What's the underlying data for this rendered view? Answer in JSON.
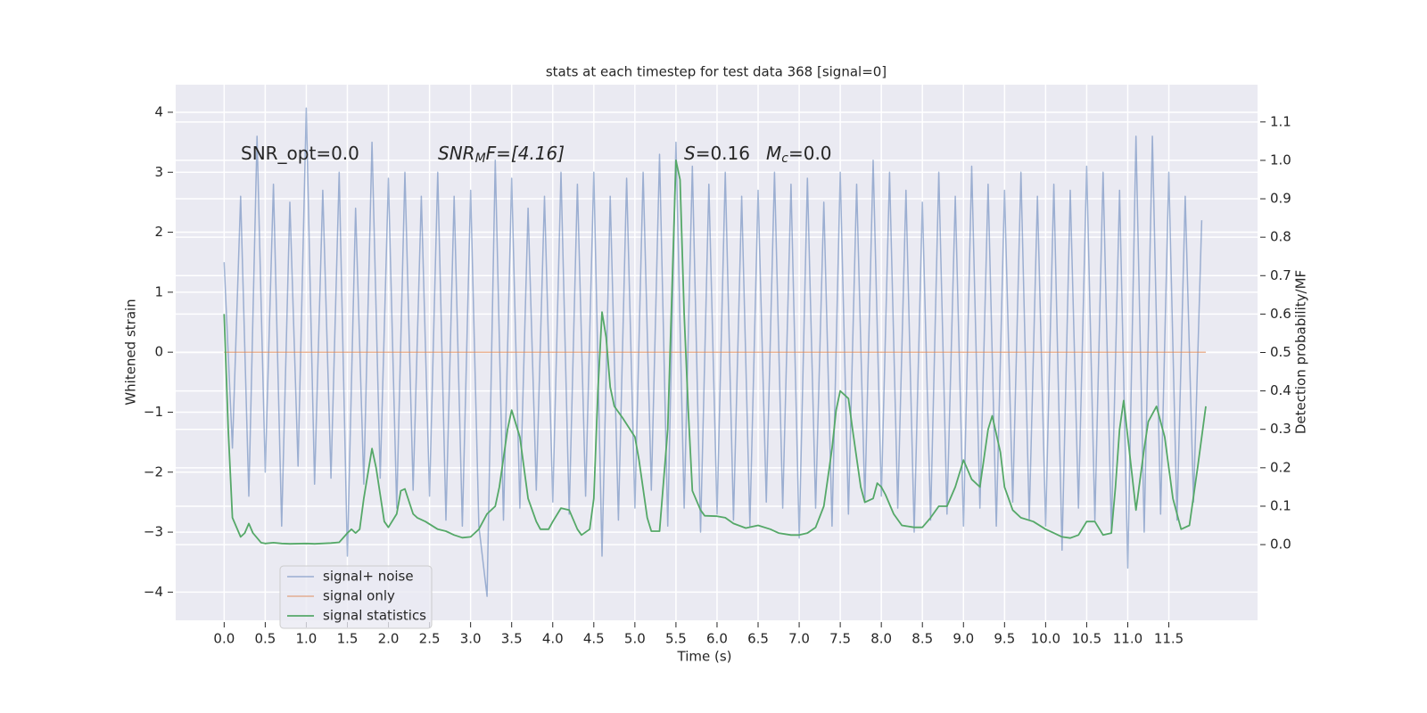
{
  "chart_data": {
    "type": "line",
    "title": "stats at each timestep for test data 368 [signal=0]",
    "xlabel": "Time (s)",
    "ylabel": "Whitened strain",
    "y2label": "Detection probability/MF",
    "xlim": [
      -0.59,
      12.58
    ],
    "ylim": [
      -4.47,
      4.46
    ],
    "y2lim": [
      -0.197,
      1.197
    ],
    "xticks": [
      {
        "value": 0,
        "label": "0.0"
      },
      0.5,
      {
        "value": 1,
        "label": "1.0"
      },
      1.5,
      {
        "value": 2,
        "label": "2.0"
      },
      2.5,
      {
        "value": 3,
        "label": "3.0"
      },
      3.5,
      {
        "value": 4,
        "label": "4.0"
      },
      4.5,
      {
        "value": 5,
        "label": "5.0"
      },
      5.5,
      {
        "value": 6,
        "label": "6.0"
      },
      6.5,
      {
        "value": 7,
        "label": "7.0"
      },
      7.5,
      {
        "value": 8,
        "label": "8.0"
      },
      8.5,
      {
        "value": 9,
        "label": "9.0"
      },
      9.5,
      {
        "value": 10,
        "label": "10.0"
      },
      10.5,
      {
        "value": 11,
        "label": "11.0"
      },
      11.5
    ],
    "yticks": [
      {
        "value": -4,
        "label": "−4"
      },
      {
        "value": -3,
        "label": "−3"
      },
      {
        "value": -2,
        "label": "−2"
      },
      {
        "value": -1,
        "label": "−1"
      },
      0,
      1,
      2,
      3,
      4
    ],
    "y2ticks": [
      {
        "value": 0,
        "label": "0.0"
      },
      0.1,
      0.2,
      0.3,
      0.4,
      0.5,
      0.6,
      0.7,
      0.8,
      0.9,
      {
        "value": 1,
        "label": "1.0"
      },
      1.1
    ],
    "grid": true,
    "legend": "lower left",
    "annotations": [
      {
        "base": "SNR_opt=0.0"
      },
      {
        "base": "SNR",
        "sub": "M",
        "rest": "F=[4.16]"
      },
      {
        "base": "S",
        "rest": "=0.16"
      },
      {
        "base": "M",
        "sub": "c",
        "rest": "=0.0"
      }
    ],
    "series": [
      {
        "name": "signal+ noise",
        "color": "#4c72b0",
        "x": [
          0,
          0.1,
          0.2,
          0.3,
          0.4,
          0.5,
          0.6,
          0.7,
          0.8,
          0.9,
          1,
          1.1,
          1.2,
          1.3,
          1.4,
          1.5,
          1.6,
          1.7,
          1.8,
          1.9,
          2,
          2.1,
          2.2,
          2.3,
          2.4,
          2.5,
          2.6,
          2.7,
          2.8,
          2.9,
          3,
          3.1,
          3.2,
          3.3,
          3.4,
          3.5,
          3.6,
          3.7,
          3.8,
          3.9,
          4,
          4.1,
          4.2,
          4.3,
          4.4,
          4.5,
          4.6,
          4.7,
          4.8,
          4.9,
          5,
          5.1,
          5.2,
          5.3,
          5.4,
          5.5,
          5.6,
          5.7,
          5.8,
          5.9,
          6,
          6.1,
          6.2,
          6.3,
          6.4,
          6.5,
          6.6,
          6.7,
          6.8,
          6.9,
          7,
          7.1,
          7.2,
          7.3,
          7.4,
          7.5,
          7.6,
          7.7,
          7.8,
          7.9,
          8,
          8.1,
          8.2,
          8.3,
          8.4,
          8.5,
          8.6,
          8.7,
          8.8,
          8.9,
          9,
          9.1,
          9.2,
          9.3,
          9.4,
          9.5,
          9.6,
          9.7,
          9.8,
          9.9,
          10,
          10.1,
          10.2,
          10.3,
          10.4,
          10.5,
          10.6,
          10.7,
          10.8,
          10.9,
          11,
          11.1,
          11.2,
          11.3,
          11.4,
          11.5,
          11.6,
          11.7,
          11.8,
          11.9
        ],
        "values": [
          1.5,
          -1.6,
          2.6,
          -2.4,
          3.6,
          -2.0,
          2.8,
          -2.9,
          2.5,
          -1.9,
          4.07,
          -2.2,
          2.7,
          -2.1,
          3.0,
          -3.4,
          2.4,
          -2.2,
          3.5,
          -2.1,
          2.9,
          -2.6,
          3.0,
          -2.3,
          2.6,
          -2.4,
          3.0,
          -2.8,
          2.6,
          -2.9,
          2.7,
          -2.9,
          -4.07,
          3.2,
          -2.8,
          2.9,
          -2.6,
          2.4,
          -2.3,
          2.6,
          -2.5,
          3.0,
          -2.7,
          2.8,
          -2.4,
          3.0,
          -3.4,
          2.6,
          -2.8,
          2.9,
          -2.6,
          3.0,
          -2.3,
          3.3,
          -2.9,
          3.5,
          -2.6,
          3.1,
          -3.0,
          2.8,
          -2.7,
          3.0,
          -2.8,
          2.6,
          -2.9,
          2.7,
          -2.5,
          3.0,
          -2.6,
          2.8,
          -3.1,
          2.9,
          -2.6,
          2.5,
          -2.9,
          3.0,
          -2.7,
          2.8,
          -2.5,
          3.2,
          -2.4,
          3.0,
          -2.6,
          2.7,
          -3.0,
          2.5,
          -2.8,
          3.0,
          -2.7,
          2.6,
          -2.9,
          3.1,
          -2.6,
          2.8,
          -2.9,
          2.7,
          -2.5,
          3.0,
          -2.8,
          2.6,
          -2.9,
          2.8,
          -3.3,
          2.7,
          -2.6,
          3.1,
          -2.8,
          3.0,
          -3.0,
          2.7,
          -3.6,
          3.6,
          -3.0,
          3.6,
          -2.7,
          3.0,
          -2.8,
          2.6,
          -2.5,
          2.2
        ]
      },
      {
        "name": "signal only",
        "color": "#dd8452",
        "x": [
          0,
          11.95
        ],
        "values": [
          0,
          0
        ]
      },
      {
        "name": "signal statistics",
        "color": "#55a868",
        "axis": "y2",
        "x": [
          0,
          0.05,
          0.1,
          0.2,
          0.25,
          0.3,
          0.35,
          0.45,
          0.5,
          0.6,
          0.7,
          0.8,
          1.0,
          1.1,
          1.3,
          1.4,
          1.5,
          1.55,
          1.6,
          1.65,
          1.7,
          1.8,
          1.85,
          1.95,
          2.0,
          2.1,
          2.15,
          2.2,
          2.3,
          2.35,
          2.45,
          2.6,
          2.7,
          2.8,
          2.9,
          3.0,
          3.1,
          3.2,
          3.3,
          3.35,
          3.45,
          3.5,
          3.6,
          3.7,
          3.8,
          3.85,
          3.95,
          4.0,
          4.1,
          4.2,
          4.3,
          4.35,
          4.45,
          4.5,
          4.55,
          4.6,
          4.65,
          4.7,
          4.75,
          4.85,
          5.0,
          5.05,
          5.15,
          5.2,
          5.3,
          5.4,
          5.5,
          5.55,
          5.6,
          5.65,
          5.7,
          5.8,
          5.85,
          6.0,
          6.1,
          6.2,
          6.35,
          6.5,
          6.65,
          6.75,
          6.9,
          7.0,
          7.1,
          7.2,
          7.3,
          7.4,
          7.45,
          7.5,
          7.6,
          7.65,
          7.75,
          7.8,
          7.9,
          7.95,
          8.0,
          8.05,
          8.15,
          8.25,
          8.4,
          8.5,
          8.6,
          8.7,
          8.8,
          8.9,
          9.0,
          9.1,
          9.2,
          9.3,
          9.35,
          9.45,
          9.5,
          9.6,
          9.7,
          9.85,
          10.0,
          10.1,
          10.2,
          10.3,
          10.4,
          10.5,
          10.6,
          10.7,
          10.8,
          10.85,
          10.9,
          10.95,
          11.0,
          11.1,
          11.2,
          11.25,
          11.35,
          11.45,
          11.55,
          11.65,
          11.75,
          11.85,
          11.95
        ],
        "values": [
          0.6,
          0.3,
          0.07,
          0.02,
          0.03,
          0.055,
          0.03,
          0.005,
          0.003,
          0.005,
          0.003,
          0.002,
          0.003,
          0.002,
          0.004,
          0.006,
          0.03,
          0.04,
          0.03,
          0.04,
          0.12,
          0.25,
          0.2,
          0.06,
          0.045,
          0.08,
          0.14,
          0.145,
          0.08,
          0.07,
          0.06,
          0.04,
          0.035,
          0.025,
          0.018,
          0.02,
          0.04,
          0.08,
          0.1,
          0.15,
          0.3,
          0.35,
          0.28,
          0.12,
          0.06,
          0.04,
          0.04,
          0.06,
          0.095,
          0.09,
          0.04,
          0.025,
          0.04,
          0.12,
          0.4,
          0.605,
          0.54,
          0.41,
          0.36,
          0.33,
          0.28,
          0.22,
          0.07,
          0.035,
          0.035,
          0.3,
          1.0,
          0.95,
          0.6,
          0.35,
          0.14,
          0.09,
          0.075,
          0.074,
          0.07,
          0.055,
          0.043,
          0.05,
          0.04,
          0.03,
          0.025,
          0.025,
          0.03,
          0.045,
          0.1,
          0.25,
          0.35,
          0.4,
          0.38,
          0.3,
          0.15,
          0.11,
          0.12,
          0.16,
          0.15,
          0.13,
          0.08,
          0.05,
          0.045,
          0.045,
          0.07,
          0.1,
          0.1,
          0.15,
          0.22,
          0.17,
          0.15,
          0.3,
          0.335,
          0.24,
          0.15,
          0.09,
          0.07,
          0.06,
          0.04,
          0.03,
          0.02,
          0.017,
          0.025,
          0.06,
          0.06,
          0.025,
          0.03,
          0.15,
          0.3,
          0.375,
          0.28,
          0.09,
          0.25,
          0.32,
          0.36,
          0.28,
          0.12,
          0.04,
          0.05,
          0.2,
          0.36
        ]
      }
    ]
  }
}
